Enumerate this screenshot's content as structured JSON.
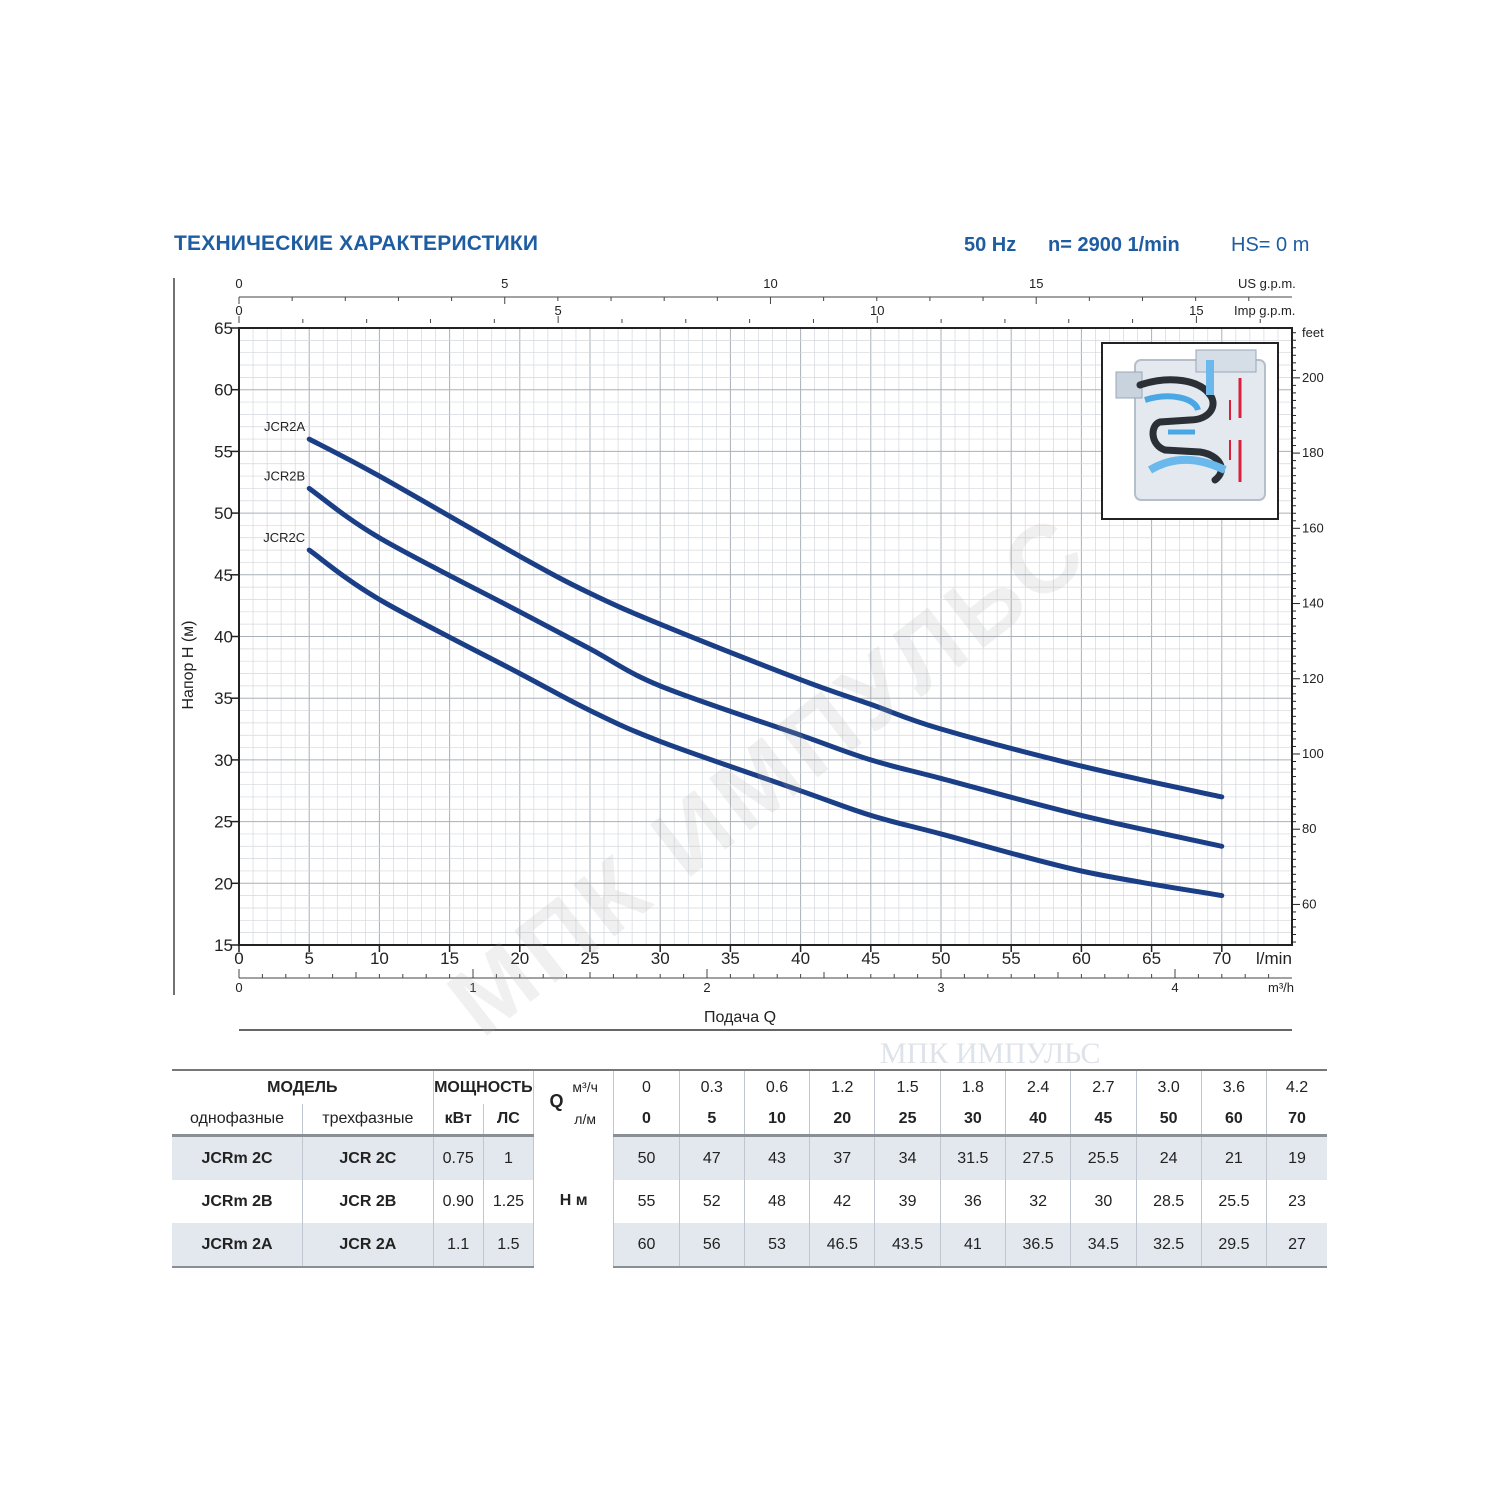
{
  "header": {
    "title": "ТЕХНИЧЕСКИЕ ХАРАКТЕРИСТИКИ",
    "frequency": "50 Hz",
    "speed": "n= 2900  1/min",
    "suction": "HS= 0 m"
  },
  "watermark": "МПК ИМПУЛЬС",
  "chart_data": {
    "type": "line",
    "title": "",
    "xlabel": "Подача Q",
    "ylabel": "Напор Н (м)",
    "x_unit": "l/min",
    "xlim": [
      0,
      75
    ],
    "ylim": [
      15,
      65
    ],
    "right_axis_unit": "feet",
    "right_axis_ticks": [
      "60",
      "80",
      "100",
      "120",
      "140",
      "160",
      "180",
      "200"
    ],
    "top_axis_1_unit": "US g.p.m.",
    "top_axis_1_ticks": [
      "0",
      "5",
      "10",
      "15"
    ],
    "top_axis_2_unit": "Imp g.p.m.",
    "top_axis_2_ticks": [
      "0",
      "5",
      "10",
      "15"
    ],
    "bottom_axis_2_unit": "m³/h",
    "bottom_axis_2_ticks": [
      "0",
      "1",
      "2",
      "3",
      "4"
    ],
    "x_ticks": [
      "0",
      "5",
      "10",
      "15",
      "20",
      "25",
      "30",
      "35",
      "40",
      "45",
      "50",
      "55",
      "60",
      "65",
      "70"
    ],
    "y_ticks": [
      "15",
      "20",
      "25",
      "30",
      "35",
      "40",
      "45",
      "50",
      "55",
      "60",
      "65"
    ],
    "grid": true,
    "series": [
      {
        "name": "JCR2A",
        "x": [
          5,
          10,
          20,
          25,
          30,
          40,
          45,
          50,
          60,
          70
        ],
        "values": [
          56,
          53,
          46.5,
          43.5,
          41,
          36.5,
          34.5,
          32.5,
          29.5,
          27
        ]
      },
      {
        "name": "JCR2B",
        "x": [
          5,
          10,
          20,
          25,
          30,
          40,
          45,
          50,
          60,
          70
        ],
        "values": [
          52,
          48,
          42,
          39,
          36,
          32,
          30,
          28.5,
          25.5,
          23
        ]
      },
      {
        "name": "JCR2C",
        "x": [
          5,
          10,
          20,
          25,
          30,
          40,
          45,
          50,
          60,
          70
        ],
        "values": [
          47,
          43,
          37,
          34,
          31.5,
          27.5,
          25.5,
          24,
          21,
          19
        ]
      }
    ],
    "line_color": "#1b3f86"
  },
  "table": {
    "model_label": "МОДЕЛЬ",
    "single_phase_label": "однофазные",
    "three_phase_label": "трехфазные",
    "power_label": "МОЩНОСТЬ",
    "kw_label": "кВт",
    "hp_label": "ЛС",
    "q_label": "Q",
    "m3h_unit": "м³/ч",
    "lmin_unit": "л/м",
    "h_label": "Н  м",
    "m3h_values": [
      "0",
      "0.3",
      "0.6",
      "1.2",
      "1.5",
      "1.8",
      "2.4",
      "2.7",
      "3.0",
      "3.6",
      "4.2"
    ],
    "lmin_values": [
      "0",
      "5",
      "10",
      "20",
      "25",
      "30",
      "40",
      "45",
      "50",
      "60",
      "70"
    ],
    "rows": [
      {
        "single": "JCRm 2C",
        "three": "JCR 2C",
        "kw": "0.75",
        "hp": "1",
        "h": [
          "50",
          "47",
          "43",
          "37",
          "34",
          "31.5",
          "27.5",
          "25.5",
          "24",
          "21",
          "19"
        ]
      },
      {
        "single": "JCRm 2B",
        "three": "JCR 2B",
        "kw": "0.90",
        "hp": "1.25",
        "h": [
          "55",
          "52",
          "48",
          "42",
          "39",
          "36",
          "32",
          "30",
          "28.5",
          "25.5",
          "23"
        ]
      },
      {
        "single": "JCRm 2A",
        "three": "JCR 2A",
        "kw": "1.1",
        "hp": "1.5",
        "h": [
          "60",
          "56",
          "53",
          "46.5",
          "43.5",
          "41",
          "36.5",
          "34.5",
          "32.5",
          "29.5",
          "27"
        ]
      }
    ]
  }
}
